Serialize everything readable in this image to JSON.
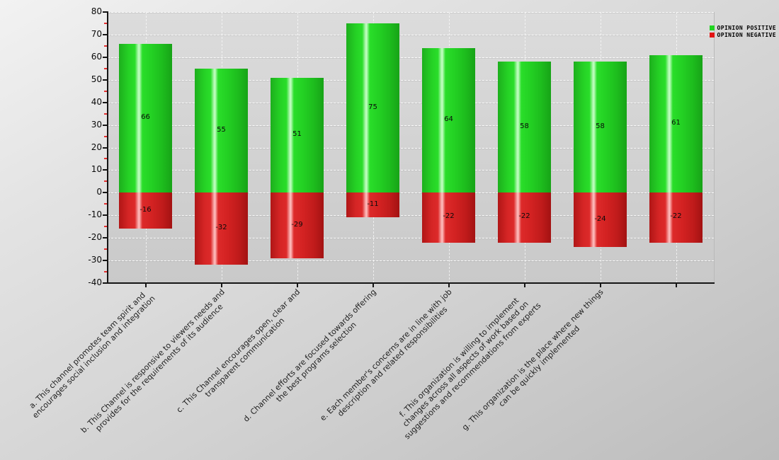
{
  "chart_data": {
    "type": "bar",
    "title": "",
    "xlabel": "",
    "ylabel": "",
    "ylim": [
      -40,
      80
    ],
    "ytick_step": 10,
    "yminor_step": 5,
    "grid": true,
    "legend_position": "top-right",
    "categories": [
      "a. This channel promotes team spirit and\nencourages social inclusion and integration",
      "b. This Channel is responsive to viewers needs and\nprovides for the requirements of its audience",
      "c. This Channel encourages open, clear and\ntransparent communication",
      "d. Channel efforts are focused towards offering\nthe best programs selection",
      "e. Each member's concerns are in line with job\ndescription and related responsibilities",
      "f. This organization is willing to implement\nchanges across all aspects of work based on\nsuggestions and recommendations from experts",
      "g. This organization is the place where new things\ncan be quickly implemented",
      ""
    ],
    "series": [
      {
        "name": "OPINION POSITIVE",
        "color": "#22d422",
        "values": [
          66,
          55,
          51,
          75,
          64,
          58,
          58,
          61
        ]
      },
      {
        "name": "OPINION NEGATIVE",
        "color": "#e21414",
        "values": [
          -16,
          -32,
          -29,
          -11,
          -22,
          -22,
          -24,
          -22
        ]
      }
    ],
    "axis": {
      "tick_color": "#151515",
      "minor_tick_color": "#e43030",
      "ytick_labels": [
        "80",
        "70",
        "60",
        "50",
        "40",
        "30",
        "20",
        "10",
        "0",
        "-10",
        "-20",
        "-30",
        "-40"
      ]
    }
  }
}
